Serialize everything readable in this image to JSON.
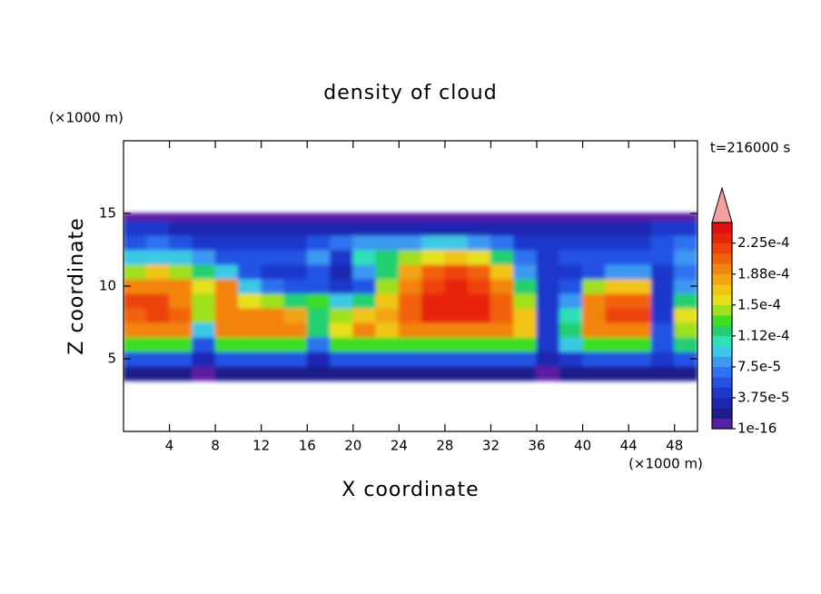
{
  "chart_data": {
    "type": "contour",
    "title": "density of cloud",
    "xlabel": "X coordinate",
    "ylabel": "Z coordinate",
    "x_unit": "(×1000 m)",
    "y_unit": "(×1000 m)",
    "annotation": "t=216000 s",
    "xlim": [
      0,
      50
    ],
    "ylim": [
      0,
      20
    ],
    "xticks": [
      4,
      8,
      12,
      16,
      20,
      24,
      28,
      32,
      36,
      40,
      44,
      48
    ],
    "yticks": [
      5,
      10,
      15
    ],
    "x_edges": [
      0,
      2,
      4,
      6,
      8,
      10,
      12,
      14,
      16,
      18,
      20,
      22,
      24,
      26,
      28,
      30,
      32,
      34,
      36,
      38,
      40,
      42,
      44,
      46,
      48,
      50
    ],
    "z_edges": [
      3.5,
      4.5,
      5.5,
      6.5,
      7.5,
      8.5,
      9.5,
      10.5,
      11.5,
      12.5,
      13.5,
      14.5,
      15
    ],
    "values": [
      [
        2.5e-05,
        2.5e-05,
        2.5e-05,
        1e-05,
        2.5e-05,
        2.5e-05,
        2.5e-05,
        2.5e-05,
        2.5e-05,
        2.5e-05,
        2.5e-05,
        2.5e-05,
        2.5e-05,
        2.5e-05,
        2.5e-05,
        2.5e-05,
        2.5e-05,
        2.5e-05,
        1e-05,
        2.5e-05,
        2.5e-05,
        2.5e-05,
        2.5e-05,
        2.5e-05,
        2.5e-05
      ],
      [
        6e-05,
        6e-05,
        6e-05,
        3e-05,
        6e-05,
        6e-05,
        6e-05,
        6e-05,
        3e-05,
        6e-05,
        6e-05,
        6e-05,
        6e-05,
        6e-05,
        6e-05,
        6e-05,
        6e-05,
        6e-05,
        3e-05,
        5e-05,
        6e-05,
        6e-05,
        6e-05,
        4e-05,
        6e-05
      ],
      [
        0.00013,
        0.00013,
        0.00013,
        6e-05,
        0.00013,
        0.00013,
        0.00013,
        0.00013,
        7e-05,
        0.00013,
        0.00013,
        0.00013,
        0.00013,
        0.00013,
        0.00013,
        0.00013,
        0.00013,
        0.00013,
        5e-05,
        0.0001,
        0.00013,
        0.00013,
        0.00013,
        6e-05,
        0.00012
      ],
      [
        0.00019,
        0.00019,
        0.00019,
        0.0001,
        0.00019,
        0.00019,
        0.00019,
        0.00019,
        0.00012,
        0.00016,
        0.00019,
        0.00017,
        0.00019,
        0.00019,
        0.00019,
        0.00019,
        0.00019,
        0.00017,
        5e-05,
        0.00012,
        0.00019,
        0.00019,
        0.00019,
        6e-05,
        0.00015
      ],
      [
        0.00021,
        0.00022,
        0.00021,
        0.00014,
        0.0002,
        0.00019,
        0.00019,
        0.00018,
        0.00012,
        0.00015,
        0.00017,
        0.00018,
        0.00021,
        0.00023,
        0.00023,
        0.00023,
        0.00021,
        0.00017,
        5e-05,
        0.00011,
        0.0002,
        0.00022,
        0.00022,
        5e-05,
        0.00016
      ],
      [
        0.00022,
        0.00022,
        0.0002,
        0.00015,
        0.0002,
        0.00016,
        0.00014,
        0.00012,
        0.00013,
        0.0001,
        0.00012,
        0.00017,
        0.00021,
        0.00023,
        0.00023,
        0.00023,
        0.00021,
        0.00015,
        5e-05,
        8e-05,
        0.00019,
        0.00021,
        0.00021,
        5e-05,
        0.00012
      ],
      [
        0.0002,
        0.0002,
        0.00019,
        0.00016,
        0.00019,
        0.0001,
        7e-05,
        6e-05,
        6e-05,
        4e-05,
        6e-05,
        0.00014,
        0.0002,
        0.00022,
        0.00023,
        0.00022,
        0.00019,
        0.00012,
        4e-05,
        6e-05,
        0.00014,
        0.00017,
        0.00017,
        5e-05,
        8e-05
      ],
      [
        0.00015,
        0.00017,
        0.00015,
        0.00012,
        0.0001,
        6e-05,
        5e-05,
        5e-05,
        6e-05,
        3e-05,
        8e-05,
        0.00012,
        0.00018,
        0.00021,
        0.00022,
        0.00021,
        0.00017,
        8e-05,
        4e-05,
        5e-05,
        6e-05,
        8e-05,
        8e-05,
        5e-05,
        7e-05
      ],
      [
        9e-05,
        0.0001,
        9e-05,
        8e-05,
        6e-05,
        6e-05,
        6e-05,
        6e-05,
        8e-05,
        5e-05,
        0.00011,
        0.00012,
        0.00014,
        0.00016,
        0.00017,
        0.00016,
        0.00012,
        7e-05,
        5e-05,
        6e-05,
        6e-05,
        6e-05,
        6e-05,
        6e-05,
        8e-05
      ],
      [
        6e-05,
        7e-05,
        6e-05,
        5e-05,
        4e-05,
        4e-05,
        4e-05,
        5e-05,
        6e-05,
        7e-05,
        8e-05,
        8e-05,
        8e-05,
        9e-05,
        9e-05,
        8e-05,
        7e-05,
        5e-05,
        4e-05,
        4e-05,
        4e-05,
        4e-05,
        5e-05,
        6e-05,
        7e-05
      ],
      [
        4e-05,
        4e-05,
        3e-05,
        3e-05,
        3e-05,
        3e-05,
        3e-05,
        3e-05,
        3e-05,
        3e-05,
        3e-05,
        3e-05,
        3e-05,
        3e-05,
        3e-05,
        3e-05,
        3e-05,
        3e-05,
        3e-05,
        3e-05,
        3e-05,
        3e-05,
        3e-05,
        4e-05,
        4e-05
      ],
      [
        5e-06,
        5e-06,
        5e-06,
        5e-06,
        5e-06,
        5e-06,
        5e-06,
        5e-06,
        5e-06,
        5e-06,
        5e-06,
        5e-06,
        5e-06,
        5e-06,
        5e-06,
        5e-06,
        5e-06,
        5e-06,
        5e-06,
        5e-06,
        5e-06,
        5e-06,
        5e-06,
        5e-06,
        5e-06
      ]
    ],
    "colorbar": {
      "clim": [
        1e-16,
        0.00025
      ],
      "colors": [
        "#5b1fa6",
        "#1c1c8c",
        "#1e26b0",
        "#1f38cc",
        "#2452e4",
        "#2f72f0",
        "#3c98f2",
        "#3ec8e6",
        "#2ee0b8",
        "#22d070",
        "#3ede22",
        "#9ee01e",
        "#e6e01c",
        "#f2c414",
        "#f2a412",
        "#f28410",
        "#f2620e",
        "#ee420c",
        "#e8240c",
        "#e0100e"
      ],
      "extend_color": "#f2a0a0",
      "ticks": [
        {
          "value": 1e-16,
          "label": "1e-16"
        },
        {
          "value": 3.75e-05,
          "label": "3.75e-5"
        },
        {
          "value": 7.5e-05,
          "label": "7.5e-5"
        },
        {
          "value": 0.0001125,
          "label": "1.12e-4"
        },
        {
          "value": 0.00015,
          "label": "1.5e-4"
        },
        {
          "value": 0.0001875,
          "label": "1.88e-4"
        },
        {
          "value": 0.000225,
          "label": "2.25e-4"
        }
      ]
    }
  }
}
